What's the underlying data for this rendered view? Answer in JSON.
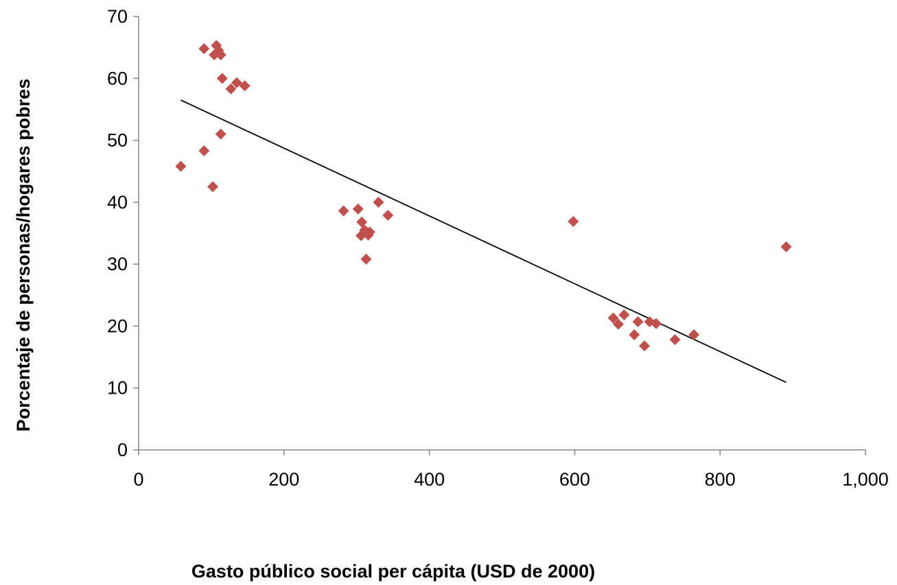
{
  "chart_data": {
    "type": "scatter",
    "title": "",
    "xlabel": "Gasto público social per cápita (USD  de 2000)",
    "ylabel": "Porcentaje de personas/hogares pobres",
    "xlim": [
      0,
      1000
    ],
    "ylim": [
      0,
      70
    ],
    "x_ticks": [
      0,
      200,
      400,
      600,
      800,
      1000
    ],
    "x_tick_labels": [
      "0",
      "200",
      "400",
      "600",
      "800",
      "1,000"
    ],
    "y_ticks": [
      0,
      10,
      20,
      30,
      40,
      50,
      60,
      70
    ],
    "y_tick_labels": [
      "0",
      "10",
      "20",
      "30",
      "40",
      "50",
      "60",
      "70"
    ],
    "grid": false,
    "legend": "none",
    "marker_color": "#C0504D",
    "trendline_color": "#000000",
    "points": [
      {
        "x": 58,
        "y": 45.8
      },
      {
        "x": 90,
        "y": 64.8
      },
      {
        "x": 90,
        "y": 48.3
      },
      {
        "x": 102,
        "y": 42.5
      },
      {
        "x": 104,
        "y": 63.8
      },
      {
        "x": 107,
        "y": 65.3
      },
      {
        "x": 110,
        "y": 64.5
      },
      {
        "x": 113,
        "y": 63.8
      },
      {
        "x": 113,
        "y": 51.0
      },
      {
        "x": 115,
        "y": 60.0
      },
      {
        "x": 127,
        "y": 58.3
      },
      {
        "x": 135,
        "y": 59.3
      },
      {
        "x": 146,
        "y": 58.8
      },
      {
        "x": 282,
        "y": 38.6
      },
      {
        "x": 302,
        "y": 38.9
      },
      {
        "x": 306,
        "y": 34.6
      },
      {
        "x": 307,
        "y": 36.8
      },
      {
        "x": 311,
        "y": 35.5
      },
      {
        "x": 313,
        "y": 30.8
      },
      {
        "x": 316,
        "y": 34.7
      },
      {
        "x": 318,
        "y": 35.2
      },
      {
        "x": 330,
        "y": 40.0
      },
      {
        "x": 343,
        "y": 37.9
      },
      {
        "x": 598,
        "y": 36.9
      },
      {
        "x": 653,
        "y": 21.3
      },
      {
        "x": 660,
        "y": 20.3
      },
      {
        "x": 668,
        "y": 21.8
      },
      {
        "x": 682,
        "y": 18.6
      },
      {
        "x": 687,
        "y": 20.7
      },
      {
        "x": 696,
        "y": 16.8
      },
      {
        "x": 703,
        "y": 20.7
      },
      {
        "x": 712,
        "y": 20.4
      },
      {
        "x": 738,
        "y": 17.8
      },
      {
        "x": 764,
        "y": 18.6
      },
      {
        "x": 891,
        "y": 32.8
      }
    ],
    "trendline": {
      "type": "linear",
      "x": [
        58,
        891
      ],
      "y": [
        56.5,
        10.9
      ]
    }
  }
}
